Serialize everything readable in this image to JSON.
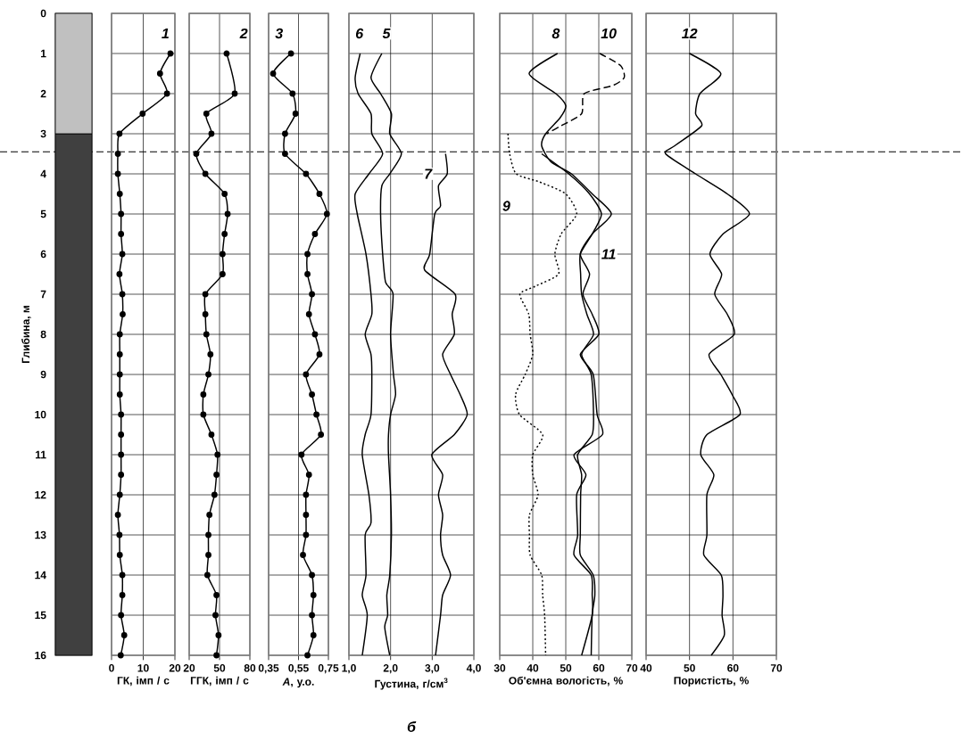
{
  "chart_data": [
    {
      "type": "bar",
      "stacked": true,
      "categories": [
        null
      ],
      "ylabel": "Глибина, м",
      "ylim": [
        16,
        0
      ],
      "yticks": [
        0,
        1,
        2,
        3,
        4,
        5,
        6,
        7,
        8,
        9,
        10,
        11,
        12,
        13,
        14,
        15,
        16
      ],
      "series": [
        {
          "color": "#c0c0c0",
          "values": [
            3
          ]
        },
        {
          "color": "#404040",
          "values": [
            13
          ]
        }
      ],
      "ref_lines": [
        {
          "axis": "y",
          "value": 3.45,
          "line_style": "dashed"
        }
      ]
    },
    {
      "type": "line",
      "xlabel": "ГК, імп / с",
      "xlim": [
        0,
        20
      ],
      "xticks": [
        0,
        10,
        20
      ],
      "ylim": [
        16,
        0
      ],
      "yticks": [
        0,
        1,
        2,
        3,
        4,
        5,
        6,
        7,
        8,
        9,
        10,
        11,
        12,
        13,
        14,
        15,
        16
      ],
      "tick_labels": "x",
      "grid": true,
      "marker": "circle",
      "series": [
        {
          "color": "#000000",
          "x": [
            18.6,
            15.3,
            17.5,
            9.8,
            2.5,
            2.0,
            2.0,
            2.6,
            3.0,
            3.0,
            3.4,
            2.5,
            3.4,
            3.5,
            2.6,
            2.6,
            2.6,
            2.6,
            3.0,
            3.0,
            3.0,
            3.0,
            2.6,
            2.0,
            2.5,
            2.6,
            3.4,
            3.4,
            3.0,
            4.0,
            2.9
          ],
          "values": [
            1,
            1.5,
            2,
            2.5,
            3,
            3.5,
            4,
            4.5,
            5,
            5.5,
            6,
            6.5,
            7,
            7.5,
            8,
            8.5,
            9,
            9.5,
            10,
            10.5,
            11,
            11.5,
            12,
            12.5,
            13,
            13.5,
            14,
            14.5,
            15,
            15.5,
            16
          ]
        }
      ],
      "annotations": [
        {
          "text": "1",
          "x": 17,
          "y": 0.5
        }
      ]
    },
    {
      "type": "line",
      "xlabel": "ГГК, імп / с",
      "xlim": [
        20,
        80
      ],
      "xticks": [
        20,
        50,
        80
      ],
      "ylim": [
        16,
        0
      ],
      "yticks": [
        0,
        1,
        2,
        3,
        4,
        5,
        6,
        7,
        8,
        9,
        10,
        11,
        12,
        13,
        14,
        15,
        16
      ],
      "tick_labels": "x",
      "grid": true,
      "marker": "circle",
      "series": [
        {
          "color": "#000000",
          "x": [
            57,
            65,
            37,
            42,
            27,
            36,
            55,
            58,
            55,
            53,
            53,
            36,
            36,
            37,
            41,
            39,
            34,
            34,
            42,
            48,
            47,
            45,
            40,
            39,
            39,
            38,
            47,
            46,
            49,
            47
          ],
          "values": [
            1,
            2,
            2.5,
            3,
            3.5,
            4,
            4.5,
            5,
            5.5,
            6,
            6.5,
            7,
            7.5,
            8,
            8.5,
            9,
            9.5,
            10,
            10.5,
            11,
            11.5,
            12,
            12.5,
            13,
            13.5,
            14,
            14.5,
            15,
            15.5,
            16
          ]
        }
      ],
      "annotations": [
        {
          "text": "2",
          "x": 74,
          "y": 0.5
        }
      ]
    },
    {
      "type": "line",
      "xlabel": "*A*, у.о.",
      "xlim": [
        0.35,
        0.75
      ],
      "xticks": [
        {
          "value": 0.35,
          "label": "0,35"
        },
        {
          "value": 0.55,
          "label": "0,55"
        },
        {
          "value": 0.75,
          "label": "0,75"
        }
      ],
      "ylim": [
        16,
        0
      ],
      "yticks": [
        0,
        1,
        2,
        3,
        4,
        5,
        6,
        7,
        8,
        9,
        10,
        11,
        12,
        13,
        14,
        15,
        16
      ],
      "tick_labels": "x",
      "grid": true,
      "marker": "circle",
      "series": [
        {
          "color": "#000000",
          "x": [
            0.5,
            0.38,
            0.51,
            0.53,
            0.46,
            0.46,
            0.6,
            0.69,
            0.74,
            0.66,
            0.61,
            0.61,
            0.64,
            0.62,
            0.66,
            0.69,
            0.6,
            0.64,
            0.67,
            0.7,
            0.57,
            0.62,
            0.6,
            0.6,
            0.6,
            0.58,
            0.64,
            0.65,
            0.64,
            0.65,
            0.61
          ],
          "values": [
            1,
            1.5,
            2,
            2.5,
            3,
            3.5,
            4,
            4.5,
            5,
            5.5,
            6,
            6.5,
            7,
            7.5,
            8,
            8.5,
            9,
            9.5,
            10,
            10.5,
            11,
            11.5,
            12,
            12.5,
            13,
            13.5,
            14,
            14.5,
            15,
            15.5,
            16
          ]
        }
      ],
      "annotations": [
        {
          "text": "3",
          "x": 0.42,
          "y": 0.5
        }
      ]
    },
    {
      "type": "line",
      "xlabel": "Густина, г/см$^{3}$",
      "xlim": [
        1,
        4
      ],
      "xticks": [
        {
          "value": 1,
          "label": "1,0"
        },
        {
          "value": 2,
          "label": "2,0"
        },
        {
          "value": 3,
          "label": "3,0"
        },
        {
          "value": 4,
          "label": "4,0"
        }
      ],
      "ylim": [
        16,
        0
      ],
      "yticks": [
        0,
        1,
        2,
        3,
        4,
        5,
        6,
        7,
        8,
        9,
        10,
        11,
        12,
        13,
        14,
        15,
        16
      ],
      "tick_labels": "x",
      "grid": true,
      "series": [
        {
          "color": "#000000",
          "x": [
            1.79,
            1.53,
            1.76,
            2.02,
            1.98,
            2.26,
            1.98,
            1.79,
            1.76,
            1.81,
            1.88,
            2.06,
            2.0,
            2.07,
            2.12,
            2.0,
            1.95,
            1.95,
            2.0,
            2.02,
            1.98,
            1.91,
            1.93,
            1.86,
            1.98
          ],
          "values": [
            1,
            1.6,
            2,
            2.5,
            3,
            3.5,
            4,
            4.3,
            5,
            6,
            6.7,
            7,
            8,
            9,
            9.5,
            10,
            10.5,
            11,
            12,
            13,
            14,
            14.5,
            15,
            15.3,
            16
          ]
        },
        {
          "color": "#000000",
          "x": [
            1.27,
            1.15,
            1.22,
            1.53,
            1.55,
            1.81,
            1.48,
            1.15,
            1.2,
            1.41,
            1.53,
            1.55,
            1.39,
            1.53,
            1.55,
            1.53,
            1.39,
            1.32,
            1.48,
            1.53,
            1.39,
            1.41,
            1.32,
            1.44,
            1.32
          ],
          "values": [
            1,
            1.6,
            2,
            2.5,
            3,
            3.5,
            4,
            4.5,
            5,
            6,
            7,
            7.5,
            8,
            8.5,
            9,
            10,
            10.5,
            11,
            12,
            12.7,
            13,
            14,
            14.5,
            15,
            16
          ]
        },
        {
          "color": "#000000",
          "x": [
            3.32,
            3.36,
            3.15,
            3.2,
            3.06,
            2.94,
            2.82,
            3.55,
            3.48,
            3.53,
            3.25,
            3.44,
            3.67,
            3.84,
            3.53,
            2.99,
            3.25,
            3.15,
            3.25,
            3.2,
            3.25,
            3.44,
            3.25,
            3.2,
            3.08
          ],
          "values": [
            3.5,
            4,
            4.3,
            4.8,
            5,
            6,
            6.4,
            7,
            7.5,
            8,
            8.5,
            9,
            9.5,
            10,
            10.5,
            11,
            11.5,
            12,
            12.5,
            13,
            13.5,
            14,
            14.5,
            15,
            16
          ]
        }
      ],
      "annotations": [
        {
          "text": "6",
          "x": 1.25,
          "y": 0.5
        },
        {
          "text": "5",
          "x": 1.9,
          "y": 0.5
        },
        {
          "text": "7",
          "x": 2.9,
          "y": 4.0
        },
        "б"
      ]
    },
    {
      "type": "line",
      "xlabel": "Об'ємна вологість, %",
      "xlim": [
        30,
        70
      ],
      "xticks": [
        30,
        40,
        50,
        60,
        70
      ],
      "ylim": [
        16,
        0
      ],
      "yticks": [
        0,
        1,
        2,
        3,
        4,
        5,
        6,
        7,
        8,
        9,
        10,
        11,
        12,
        13,
        14,
        15,
        16
      ],
      "tick_labels": "x",
      "grid": true,
      "series": [
        {
          "color": "#000000",
          "x": [
            47.5,
            38.9,
            47,
            50,
            48.3,
            43.9,
            42.7,
            45.5,
            51.7,
            58,
            63.8,
            58,
            54.4,
            57.2,
            55.2,
            58,
            60,
            54.4,
            58.3,
            59.5,
            61.1,
            52.5,
            56.1,
            53.3,
            53.6,
            52.5,
            57.7,
            58,
            58,
            54.8
          ],
          "values": [
            1,
            1.5,
            2,
            2.3,
            2.6,
            3,
            3.3,
            3.7,
            4,
            4.5,
            5,
            5.5,
            6,
            6.5,
            7,
            7.5,
            8,
            8.5,
            9,
            10,
            10.5,
            11,
            11.5,
            12,
            13,
            13.5,
            14,
            14.5,
            15,
            16
          ]
        },
        {
          "color": "#000000",
          "line_style": "dotted",
          "x": [
            32.5,
            33,
            35,
            42,
            50,
            53.3,
            48.6,
            46.7,
            47.8,
            40.8,
            36.1,
            38.8,
            39.2,
            40,
            37.7,
            34.8,
            36,
            43,
            40,
            40,
            41.6,
            39,
            39,
            39.2,
            42.7,
            43,
            43.6,
            43.9
          ],
          "values": [
            3,
            3.5,
            4,
            4.2,
            4.5,
            5,
            5.5,
            6,
            6.5,
            6.8,
            7,
            7.5,
            8,
            8.5,
            9,
            9.5,
            10,
            10.5,
            11,
            11.5,
            12,
            12.5,
            13,
            13.5,
            14,
            14.5,
            15,
            16
          ]
        },
        {
          "color": "#000000",
          "line_style": "dashed",
          "x": [
            60.3,
            66.6,
            67.7,
            64.2,
            55.6,
            54.8,
            48.6,
            44.2
          ],
          "values": [
            1,
            1.3,
            1.6,
            1.8,
            2,
            2.5,
            2.8,
            3
          ]
        },
        {
          "color": "#000000",
          "x": [
            42.7,
            50.9,
            57.2,
            60.8,
            58,
            54.4,
            54.5,
            54.8,
            56.4,
            58.4,
            54.8,
            57.7,
            58.4,
            58,
            53.6,
            54.8,
            54.5,
            54.4,
            54.4,
            58.3,
            58.8,
            58,
            57.7
          ],
          "values": [
            3.5,
            4,
            4.5,
            5,
            5.5,
            6,
            6.5,
            7,
            7.5,
            8,
            8.5,
            9,
            10,
            10.5,
            11,
            11.5,
            12,
            13,
            13.5,
            14,
            14.5,
            15,
            16
          ]
        }
      ],
      "annotations": [
        {
          "text": "8",
          "x": 47,
          "y": 0.5
        },
        {
          "text": "10",
          "x": 63,
          "y": 0.5
        },
        {
          "text": "9",
          "x": 32,
          "y": 4.8
        },
        {
          "text": "11",
          "x": 63,
          "y": 6.0
        }
      ]
    },
    {
      "type": "line",
      "xlabel": "Пористість, %",
      "xlim": [
        40,
        70
      ],
      "xticks": [
        40,
        50,
        60,
        70
      ],
      "ylim": [
        16,
        0
      ],
      "yticks": [
        0,
        1,
        2,
        3,
        4,
        5,
        6,
        7,
        8,
        9,
        10,
        11,
        12,
        13,
        14,
        15,
        16
      ],
      "tick_labels": "x",
      "grid": true,
      "series": [
        {
          "color": "#000000",
          "x": [
            50,
            57.2,
            52.4,
            51.4,
            52.8,
            46.6,
            44.5,
            51.4,
            58.7,
            63.8,
            57.7,
            54.7,
            57.4,
            55.8,
            58.7,
            60.3,
            54.5,
            57.2,
            59.8,
            61.6,
            54,
            52.6,
            55.6,
            54,
            54,
            53.3,
            57.3,
            57.7,
            57.5,
            58,
            55
          ],
          "values": [
            1,
            1.5,
            2,
            2.5,
            2.8,
            3.3,
            3.5,
            4,
            4.5,
            5,
            5.5,
            6,
            6.5,
            7,
            7.5,
            8,
            8.5,
            9,
            9.5,
            10,
            10.5,
            11,
            11.5,
            12,
            13,
            13.5,
            14,
            14.5,
            15,
            15.5,
            16
          ]
        }
      ],
      "annotations": [
        {
          "text": "12",
          "x": 50,
          "y": 0.5
        }
      ]
    }
  ]
}
